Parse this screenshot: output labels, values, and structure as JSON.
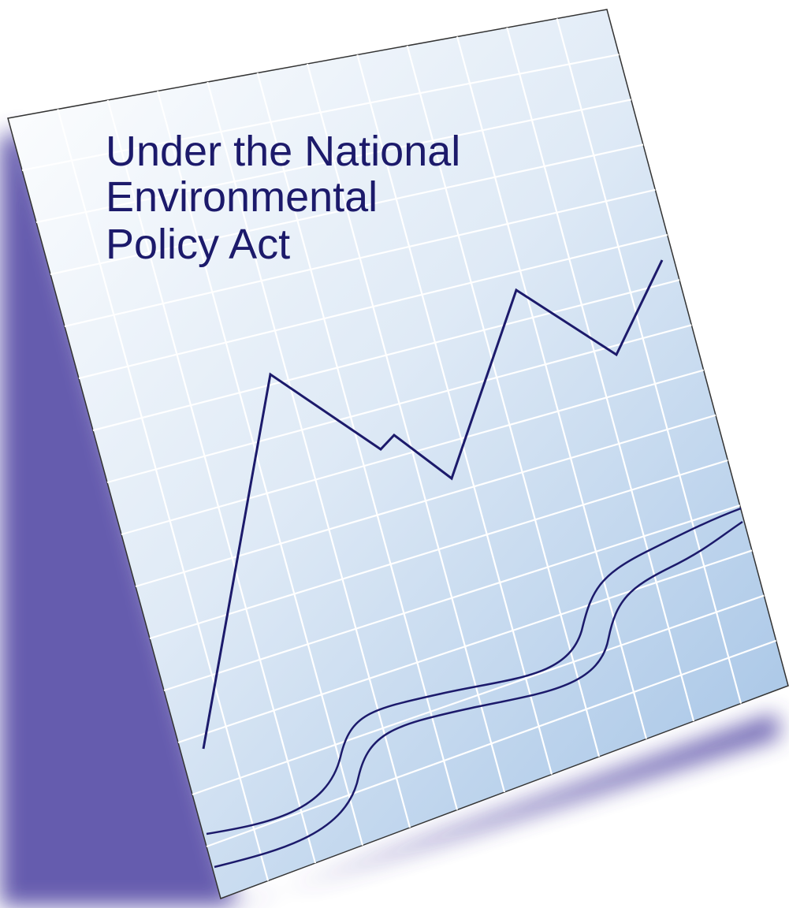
{
  "cover": {
    "title_lines": [
      "Under the National",
      "Environmental",
      "Policy Act"
    ]
  }
}
